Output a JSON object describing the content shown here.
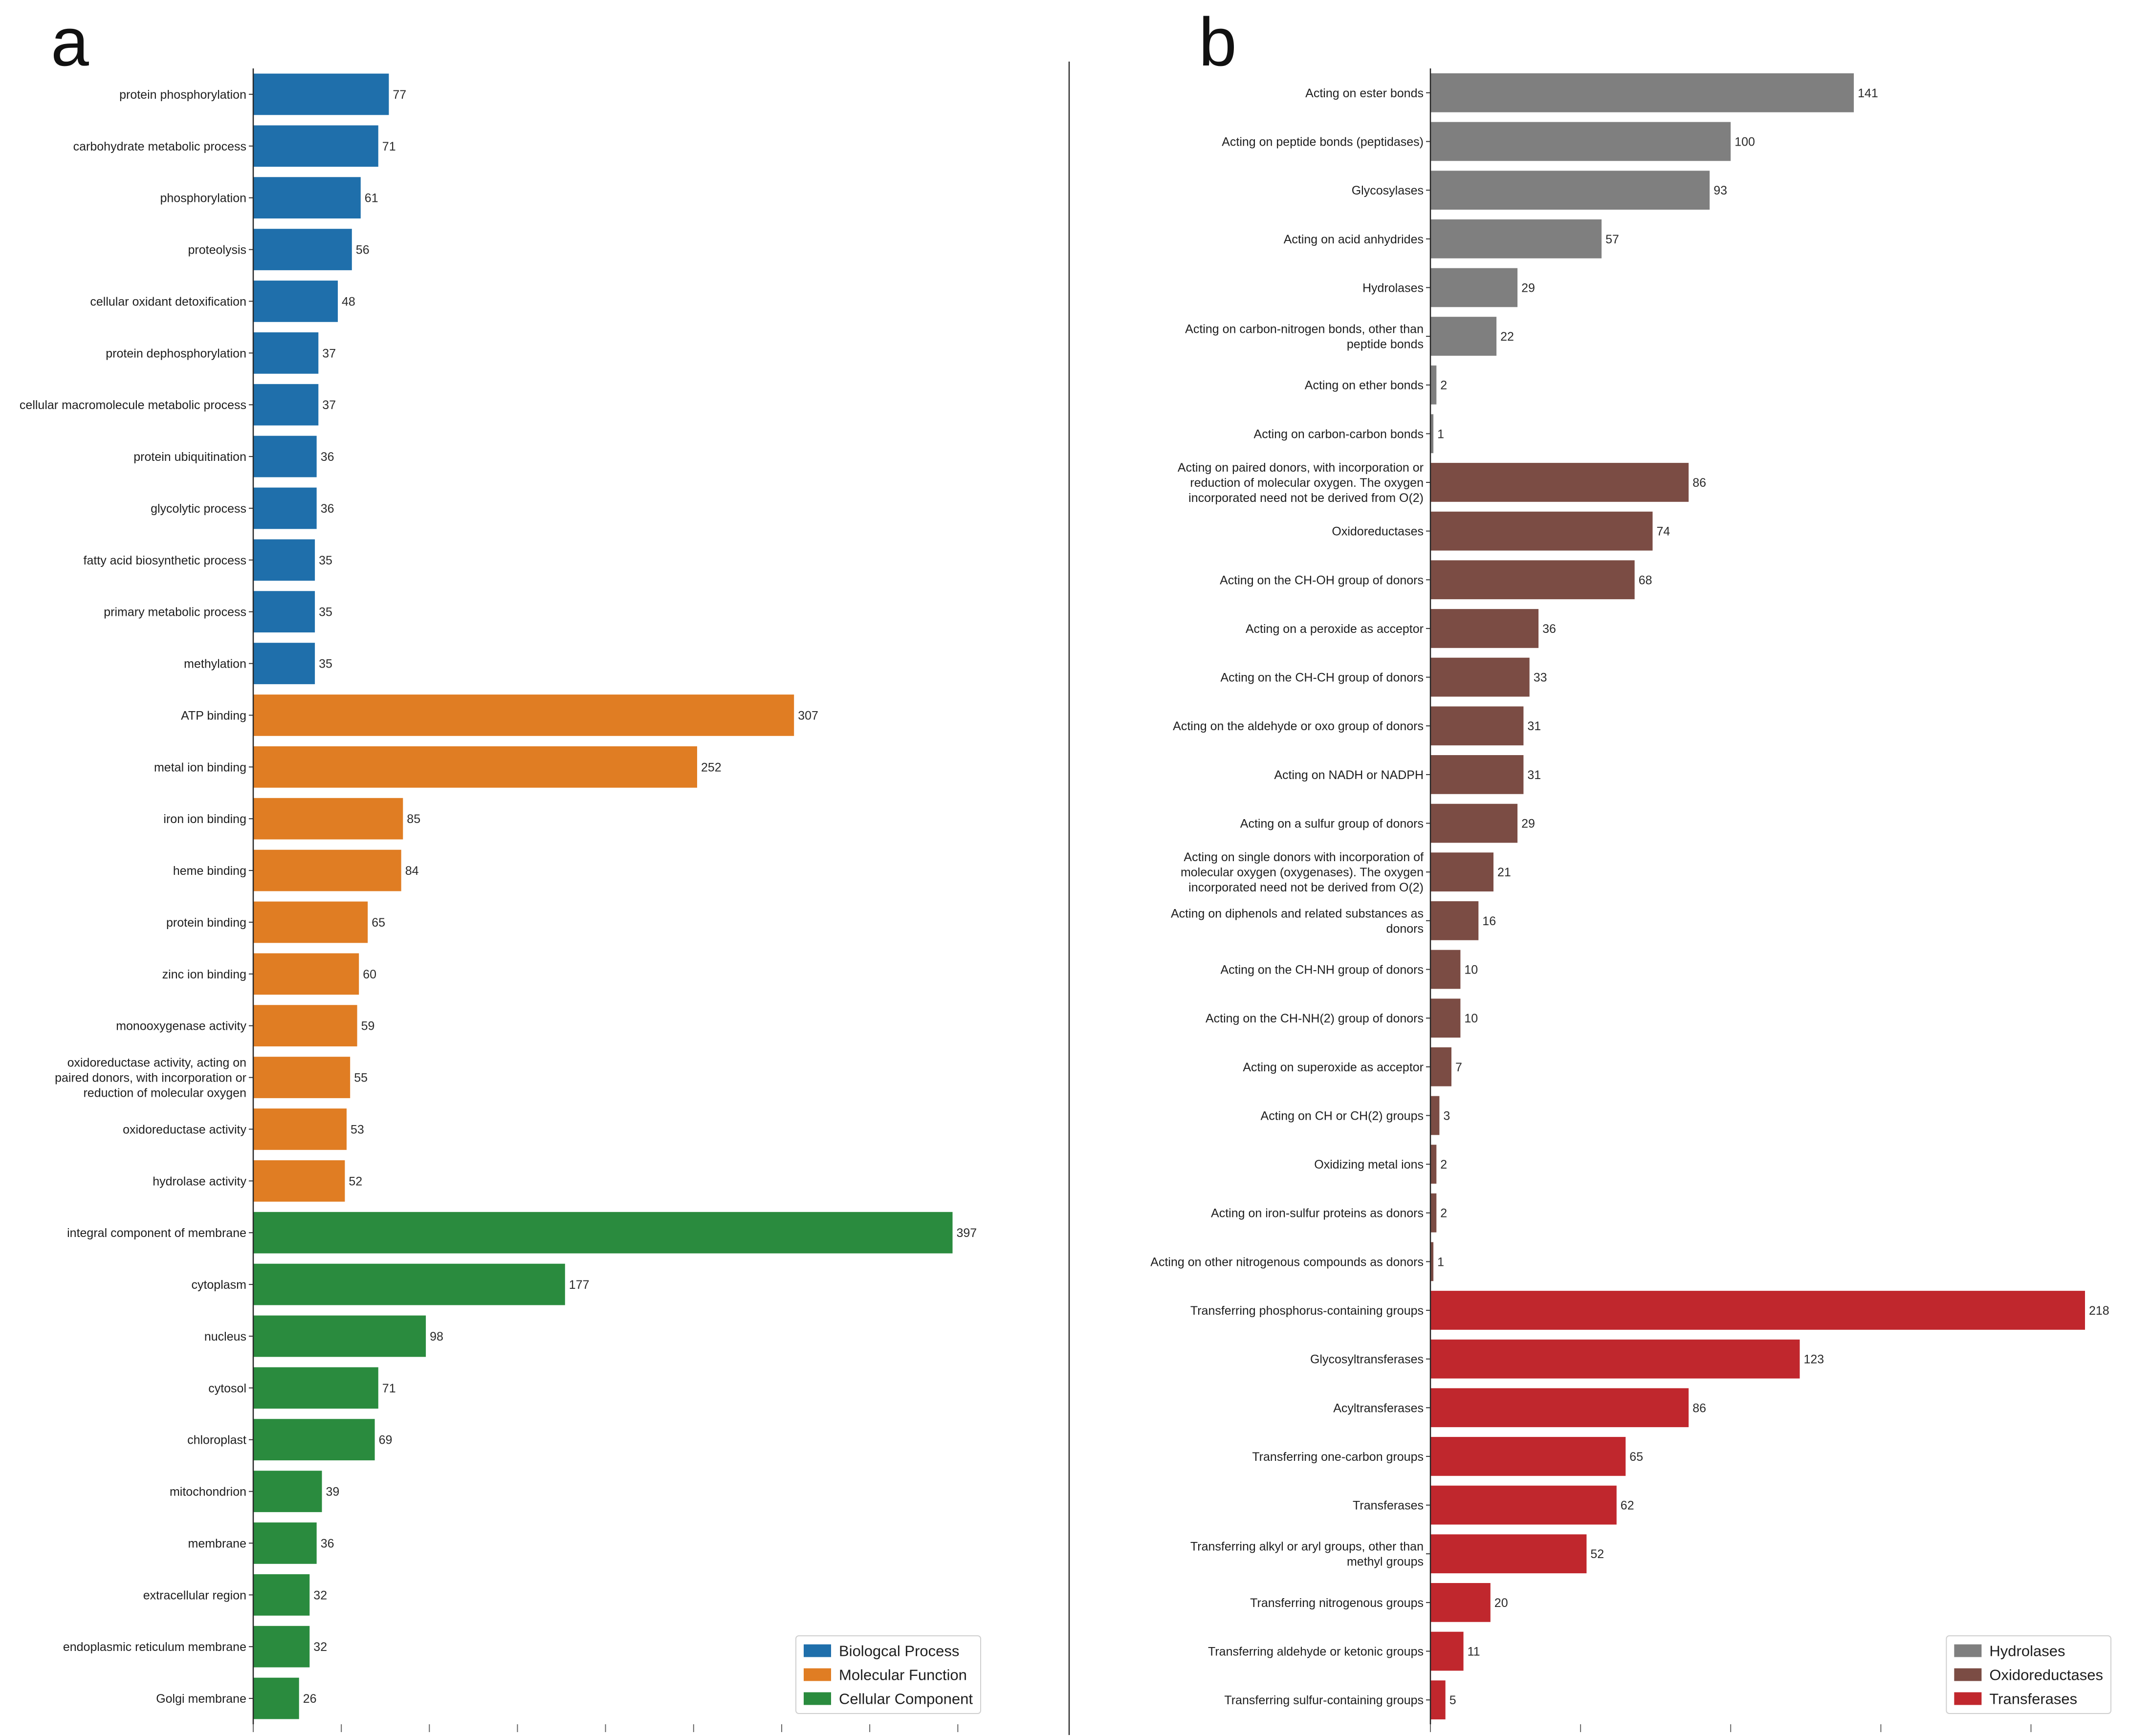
{
  "chart_data": [
    {
      "panel_label": "a",
      "type": "bar",
      "title": "",
      "xlabel": "",
      "ylabel": "",
      "xlim": [
        0,
        416.85
      ],
      "xticks": [
        0,
        50,
        100,
        150,
        200,
        250,
        300,
        350,
        400
      ],
      "grid": false,
      "legend_position": "lower right",
      "series": [
        {
          "name": "Biologcal Process",
          "color": "#1f6fab",
          "categories": [
            "protein phosphorylation",
            "carbohydrate metabolic process",
            "phosphorylation",
            "proteolysis",
            "cellular oxidant detoxification",
            "protein dephosphorylation",
            "cellular macromolecule metabolic process",
            "protein ubiquitination",
            "glycolytic process",
            "fatty acid biosynthetic process",
            "primary metabolic process",
            "methylation"
          ],
          "values": [
            77,
            71,
            61,
            56,
            48,
            37,
            37,
            36,
            36,
            35,
            35,
            35
          ]
        },
        {
          "name": "Molecular Function",
          "color": "#e07d23",
          "categories": [
            "ATP binding",
            "metal ion binding",
            "iron ion binding",
            "heme binding",
            "protein binding",
            "zinc ion binding",
            "monooxygenase activity",
            [
              "oxidoreductase activity, acting on",
              "paired donors, with incorporation or",
              "reduction of molecular oxygen"
            ],
            "oxidoreductase activity",
            "hydrolase activity"
          ],
          "values": [
            307,
            252,
            85,
            84,
            65,
            60,
            59,
            55,
            53,
            52
          ]
        },
        {
          "name": "Cellular Component",
          "color": "#2a8b3e",
          "categories": [
            "integral component of membrane",
            "cytoplasm",
            "nucleus",
            "cytosol",
            "chloroplast",
            "mitochondrion",
            "membrane",
            "extracellular region",
            "endoplasmic reticulum membrane",
            "Golgi membrane"
          ],
          "values": [
            397,
            177,
            98,
            71,
            69,
            39,
            36,
            32,
            32,
            26
          ]
        }
      ]
    },
    {
      "panel_label": "b",
      "type": "bar",
      "title": "",
      "xlabel": "",
      "ylabel": "",
      "xlim": [
        0,
        228.9
      ],
      "xticks": [
        0,
        50,
        100,
        150,
        200
      ],
      "grid": false,
      "legend_position": "lower right",
      "series": [
        {
          "name": "Hydrolases",
          "color": "#7f7f7f",
          "categories": [
            "Acting on ester bonds",
            "Acting on peptide bonds (peptidases)",
            "Glycosylases",
            "Acting on acid anhydrides",
            "Hydrolases",
            [
              "Acting on carbon-nitrogen bonds, other than",
              "peptide bonds"
            ],
            "Acting on ether bonds",
            "Acting on carbon-carbon bonds"
          ],
          "values": [
            141,
            100,
            93,
            57,
            29,
            22,
            2,
            1
          ]
        },
        {
          "name": "Oxidoreductases",
          "color": "#7b4c44",
          "categories": [
            [
              "Acting on paired donors, with incorporation or",
              "reduction of molecular oxygen. The oxygen",
              "incorporated need not be derived from O(2)"
            ],
            "Oxidoreductases",
            "Acting on the CH-OH group of donors",
            "Acting on a peroxide as acceptor",
            "Acting on the CH-CH group of donors",
            "Acting on the aldehyde or oxo group of donors",
            "Acting on NADH or NADPH",
            "Acting on a sulfur group of donors",
            [
              "Acting on single donors with incorporation of",
              "molecular oxygen (oxygenases). The oxygen",
              "incorporated need not be derived from O(2)"
            ],
            [
              "Acting on diphenols and related substances as",
              "donors"
            ],
            "Acting on the CH-NH group of donors",
            "Acting on the CH-NH(2) group of donors",
            "Acting on superoxide as acceptor",
            "Acting on CH or CH(2) groups",
            "Oxidizing metal ions",
            "Acting on iron-sulfur proteins as donors",
            "Acting on other nitrogenous compounds as donors"
          ],
          "values": [
            86,
            74,
            68,
            36,
            33,
            31,
            31,
            29,
            21,
            16,
            10,
            10,
            7,
            3,
            2,
            2,
            1
          ]
        },
        {
          "name": "Transferases",
          "color": "#c0272d",
          "categories": [
            "Transferring phosphorus-containing groups",
            "Glycosyltransferases",
            "Acyltransferases",
            "Transferring one-carbon groups",
            "Transferases",
            [
              "Transferring alkyl or aryl groups, other than",
              "methyl groups"
            ],
            "Transferring nitrogenous groups",
            "Transferring aldehyde or ketonic groups",
            "Transferring sulfur-containing groups"
          ],
          "values": [
            218,
            123,
            86,
            65,
            62,
            52,
            20,
            11,
            5
          ]
        }
      ]
    }
  ]
}
